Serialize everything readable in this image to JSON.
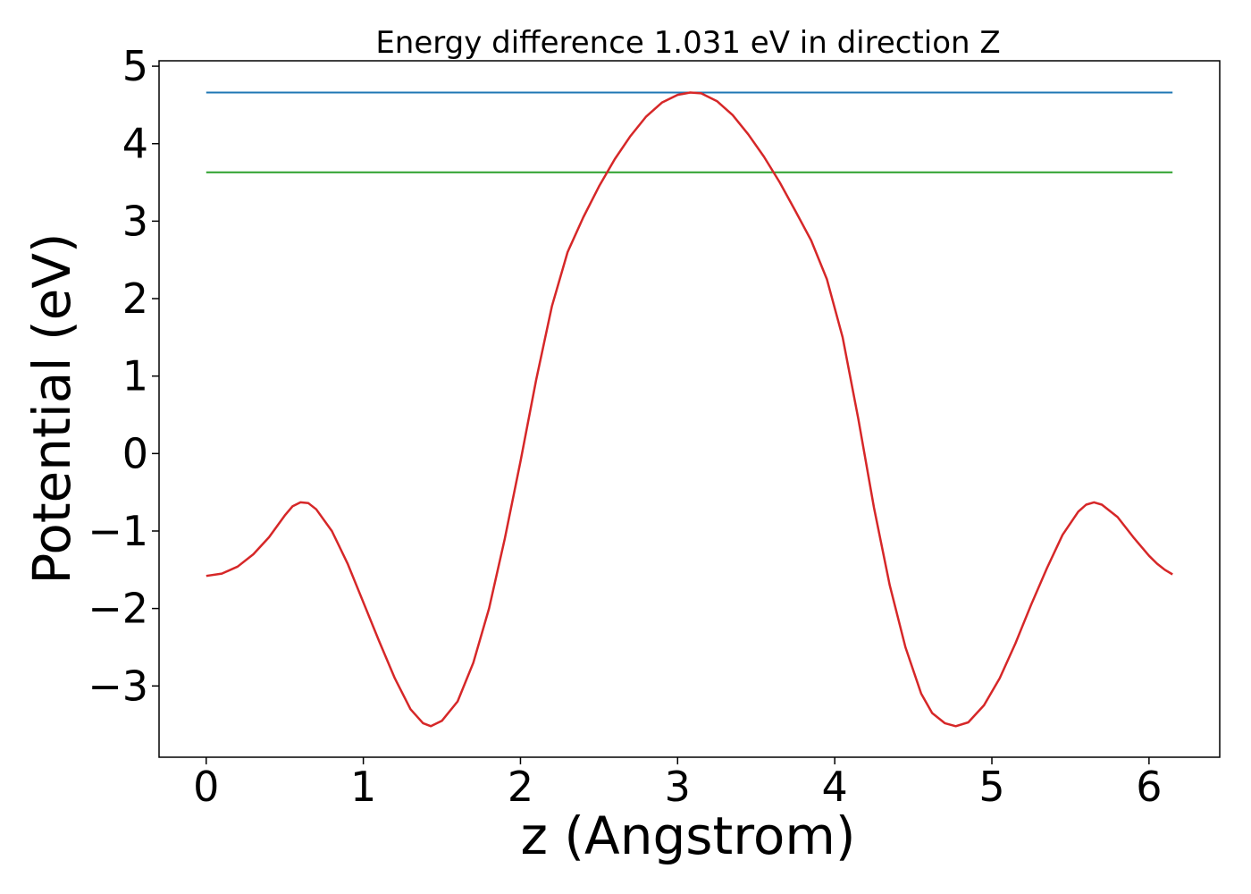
{
  "chart_data": {
    "type": "line",
    "title": "Energy difference 1.031 eV in direction Z",
    "xlabel": "z (Angstrom)",
    "ylabel": "Potential (eV)",
    "xlim": [
      -0.3,
      6.45
    ],
    "ylim": [
      -3.92,
      5.07
    ],
    "xticks": [
      0,
      1,
      2,
      3,
      4,
      5,
      6
    ],
    "xtick_labels": [
      "0",
      "1",
      "2",
      "3",
      "4",
      "5",
      "6"
    ],
    "yticks": [
      -3,
      -2,
      -1,
      0,
      1,
      2,
      3,
      4,
      5
    ],
    "ytick_labels": [
      "−3",
      "−2",
      "−1",
      "0",
      "1",
      "2",
      "3",
      "4",
      "5"
    ],
    "grid": false,
    "legend": "none",
    "colors": {
      "potential": "#d62728",
      "max_line": "#1f77b4",
      "avg_line": "#2ca02c"
    },
    "series": [
      {
        "values": [
          [
            0.0,
            -1.58
          ],
          [
            0.1,
            -1.55
          ],
          [
            0.2,
            -1.46
          ],
          [
            0.3,
            -1.3
          ],
          [
            0.4,
            -1.08
          ],
          [
            0.5,
            -0.8
          ],
          [
            0.55,
            -0.68
          ],
          [
            0.6,
            -0.63
          ],
          [
            0.65,
            -0.64
          ],
          [
            0.7,
            -0.72
          ],
          [
            0.8,
            -1.0
          ],
          [
            0.9,
            -1.42
          ],
          [
            1.0,
            -1.92
          ],
          [
            1.1,
            -2.42
          ],
          [
            1.2,
            -2.9
          ],
          [
            1.3,
            -3.3
          ],
          [
            1.38,
            -3.48
          ],
          [
            1.43,
            -3.52
          ],
          [
            1.5,
            -3.45
          ],
          [
            1.6,
            -3.2
          ],
          [
            1.7,
            -2.7
          ],
          [
            1.8,
            -2.0
          ],
          [
            1.9,
            -1.1
          ],
          [
            2.0,
            -0.1
          ],
          [
            2.1,
            0.95
          ],
          [
            2.2,
            1.9
          ],
          [
            2.3,
            2.6
          ],
          [
            2.4,
            3.05
          ],
          [
            2.5,
            3.45
          ],
          [
            2.6,
            3.8
          ],
          [
            2.7,
            4.1
          ],
          [
            2.8,
            4.35
          ],
          [
            2.9,
            4.53
          ],
          [
            3.0,
            4.63
          ],
          [
            3.08,
            4.66
          ],
          [
            3.15,
            4.65
          ],
          [
            3.25,
            4.55
          ],
          [
            3.35,
            4.37
          ],
          [
            3.45,
            4.12
          ],
          [
            3.55,
            3.83
          ],
          [
            3.65,
            3.5
          ],
          [
            3.75,
            3.13
          ],
          [
            3.85,
            2.75
          ],
          [
            3.95,
            2.25
          ],
          [
            4.05,
            1.5
          ],
          [
            4.15,
            0.45
          ],
          [
            4.25,
            -0.7
          ],
          [
            4.35,
            -1.7
          ],
          [
            4.45,
            -2.5
          ],
          [
            4.55,
            -3.1
          ],
          [
            4.62,
            -3.35
          ],
          [
            4.7,
            -3.48
          ],
          [
            4.77,
            -3.52
          ],
          [
            4.85,
            -3.47
          ],
          [
            4.95,
            -3.25
          ],
          [
            5.05,
            -2.9
          ],
          [
            5.15,
            -2.45
          ],
          [
            5.25,
            -1.95
          ],
          [
            5.35,
            -1.48
          ],
          [
            5.45,
            -1.05
          ],
          [
            5.55,
            -0.75
          ],
          [
            5.6,
            -0.66
          ],
          [
            5.65,
            -0.63
          ],
          [
            5.7,
            -0.66
          ],
          [
            5.8,
            -0.82
          ],
          [
            5.9,
            -1.08
          ],
          [
            6.0,
            -1.32
          ],
          [
            6.05,
            -1.42
          ],
          [
            6.1,
            -1.5
          ],
          [
            6.15,
            -1.56
          ]
        ]
      },
      {
        "values": [
          [
            0.0,
            4.66
          ],
          [
            6.15,
            4.66
          ]
        ]
      },
      {
        "values": [
          [
            0.0,
            3.63
          ],
          [
            6.15,
            3.63
          ]
        ]
      }
    ]
  }
}
